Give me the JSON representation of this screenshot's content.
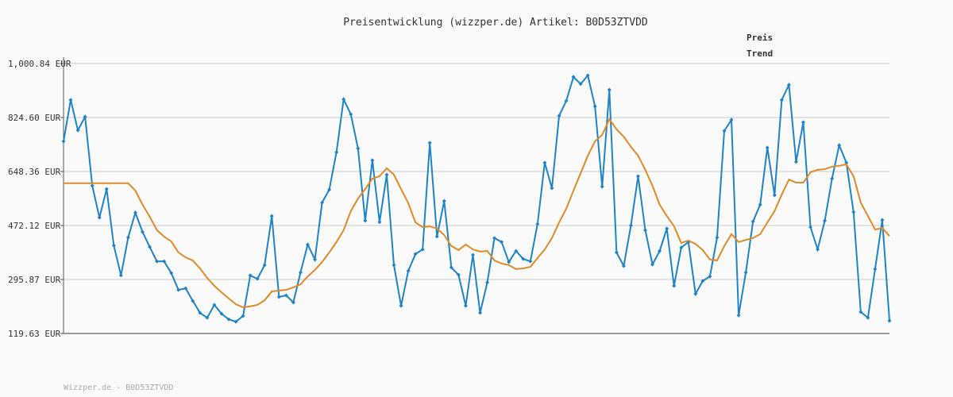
{
  "chart_data": {
    "type": "line",
    "title": "Preisentwicklung (wizzper.de) Artikel: B0D53ZTVDD",
    "footer": "Wizzper.de - B0D53ZTVDD",
    "ylim": [
      119.63,
      1000.84
    ],
    "yticks": [
      {
        "value": 119.63,
        "label": "119.63 EUR"
      },
      {
        "value": 295.87,
        "label": "295.87 EUR"
      },
      {
        "value": 472.12,
        "label": "472.12 EUR"
      },
      {
        "value": 648.36,
        "label": "648.36 EUR"
      },
      {
        "value": 824.6,
        "label": "824.60 EUR"
      },
      {
        "value": 1000.84,
        "label": "1,000.84 EUR"
      }
    ],
    "grid": true,
    "legend": "top-right",
    "series": [
      {
        "name": "Preis",
        "color": "#1f84c6",
        "markers": true,
        "values": [
          747,
          882,
          783,
          827,
          602,
          498,
          591,
          407,
          309,
          433,
          514,
          451,
          402,
          355,
          355,
          317,
          262,
          267,
          226,
          187,
          171,
          213,
          184,
          166,
          158,
          177,
          309,
          298,
          343,
          503,
          239,
          244,
          221,
          319,
          410,
          361,
          547,
          589,
          711,
          884,
          835,
          724,
          488,
          685,
          483,
          638,
          343,
          210,
          324,
          379,
          394,
          742,
          436,
          552,
          335,
          311,
          210,
          376,
          187,
          286,
          431,
          418,
          353,
          389,
          363,
          355,
          477,
          677,
          594,
          830,
          879,
          957,
          934,
          962,
          861,
          599,
          915,
          384,
          340,
          472,
          633,
          457,
          345,
          389,
          462,
          275,
          400,
          418,
          249,
          291,
          306,
          433,
          781,
          817,
          179,
          319,
          485,
          540,
          726,
          571,
          882,
          931,
          680,
          809,
          467,
          394,
          488,
          625,
          734,
          677,
          516,
          190,
          171,
          330,
          490,
          161
        ]
      },
      {
        "name": "Trend",
        "color": "#e08a28",
        "markers": false,
        "values": [
          610,
          610,
          610,
          610,
          610,
          610,
          610,
          610,
          610,
          610,
          586,
          540,
          501,
          457,
          436,
          420,
          384,
          368,
          358,
          332,
          301,
          275,
          254,
          234,
          215,
          205,
          208,
          213,
          228,
          257,
          260,
          262,
          270,
          280,
          306,
          327,
          353,
          384,
          418,
          457,
          519,
          560,
          591,
          625,
          633,
          659,
          638,
          591,
          545,
          482,
          467,
          469,
          462,
          441,
          405,
          392,
          410,
          394,
          387,
          389,
          358,
          348,
          343,
          330,
          332,
          337,
          366,
          394,
          431,
          482,
          527,
          586,
          643,
          700,
          747,
          768,
          819,
          786,
          762,
          729,
          700,
          654,
          602,
          540,
          503,
          470,
          415,
          423,
          412,
          392,
          361,
          358,
          405,
          444,
          418,
          425,
          431,
          444,
          482,
          519,
          573,
          622,
          612,
          612,
          646,
          654,
          656,
          664,
          667,
          672,
          633,
          547,
          503,
          459,
          464,
          438
        ]
      }
    ]
  }
}
